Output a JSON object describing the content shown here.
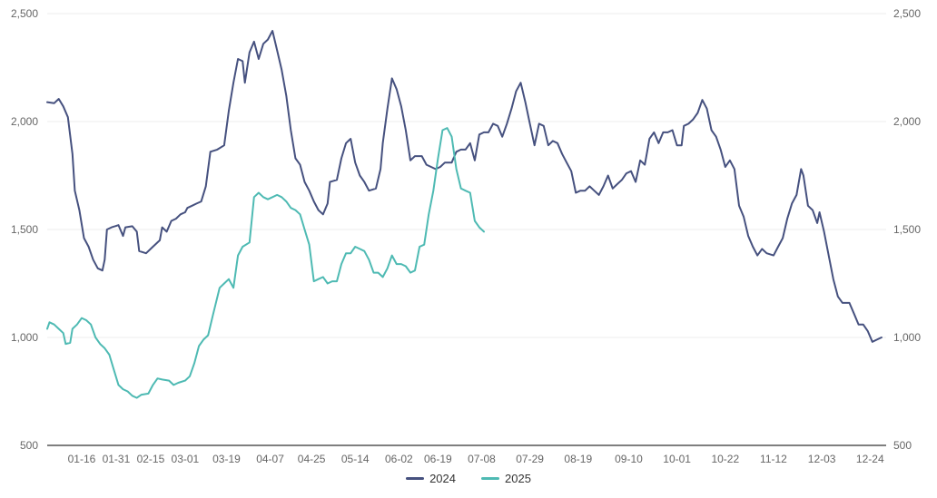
{
  "chart_data": {
    "type": "line",
    "title": "",
    "xlabel": "",
    "ylabel": "",
    "ylim": [
      500,
      2500
    ],
    "y_ticks": [
      "500",
      "1,000",
      "1,500",
      "2,000",
      "2,500"
    ],
    "y_tick_values": [
      500,
      1000,
      1500,
      2000,
      2500
    ],
    "x_range": [
      "01-01",
      "12-31"
    ],
    "x_ticks": [
      "01-16",
      "01-31",
      "02-15",
      "03-01",
      "03-19",
      "04-07",
      "04-25",
      "05-14",
      "06-02",
      "06-19",
      "07-08",
      "07-29",
      "08-19",
      "09-10",
      "10-01",
      "10-22",
      "11-12",
      "12-03",
      "12-24"
    ],
    "grid": true,
    "legend_position": "bottom",
    "series": [
      {
        "name": "2024",
        "color": "#46517f",
        "points": [
          [
            "01-01",
            2090
          ],
          [
            "01-04",
            2085
          ],
          [
            "01-06",
            2105
          ],
          [
            "01-08",
            2070
          ],
          [
            "01-10",
            2020
          ],
          [
            "01-12",
            1850
          ],
          [
            "01-13",
            1680
          ],
          [
            "01-15",
            1590
          ],
          [
            "01-17",
            1460
          ],
          [
            "01-19",
            1420
          ],
          [
            "01-21",
            1360
          ],
          [
            "01-23",
            1320
          ],
          [
            "01-25",
            1310
          ],
          [
            "01-26",
            1360
          ],
          [
            "01-27",
            1500
          ],
          [
            "01-29",
            1510
          ],
          [
            "02-01",
            1520
          ],
          [
            "02-03",
            1470
          ],
          [
            "02-04",
            1510
          ],
          [
            "02-07",
            1515
          ],
          [
            "02-09",
            1490
          ],
          [
            "02-10",
            1400
          ],
          [
            "02-13",
            1390
          ],
          [
            "02-16",
            1420
          ],
          [
            "02-19",
            1450
          ],
          [
            "02-20",
            1510
          ],
          [
            "02-22",
            1490
          ],
          [
            "02-24",
            1540
          ],
          [
            "02-26",
            1550
          ],
          [
            "02-28",
            1570
          ],
          [
            "03-01",
            1580
          ],
          [
            "03-02",
            1600
          ],
          [
            "03-04",
            1610
          ],
          [
            "03-06",
            1620
          ],
          [
            "03-08",
            1630
          ],
          [
            "03-10",
            1700
          ],
          [
            "03-12",
            1860
          ],
          [
            "03-15",
            1870
          ],
          [
            "03-18",
            1890
          ],
          [
            "03-20",
            2050
          ],
          [
            "03-22",
            2180
          ],
          [
            "03-24",
            2290
          ],
          [
            "03-26",
            2280
          ],
          [
            "03-27",
            2180
          ],
          [
            "03-29",
            2320
          ],
          [
            "03-31",
            2370
          ],
          [
            "04-02",
            2290
          ],
          [
            "04-04",
            2360
          ],
          [
            "04-06",
            2380
          ],
          [
            "04-08",
            2420
          ],
          [
            "04-10",
            2330
          ],
          [
            "04-12",
            2240
          ],
          [
            "04-14",
            2120
          ],
          [
            "04-16",
            1960
          ],
          [
            "04-18",
            1830
          ],
          [
            "04-20",
            1800
          ],
          [
            "04-22",
            1720
          ],
          [
            "04-24",
            1680
          ],
          [
            "04-26",
            1630
          ],
          [
            "04-28",
            1590
          ],
          [
            "04-30",
            1570
          ],
          [
            "05-02",
            1620
          ],
          [
            "05-03",
            1720
          ],
          [
            "05-06",
            1730
          ],
          [
            "05-08",
            1830
          ],
          [
            "05-10",
            1900
          ],
          [
            "05-12",
            1920
          ],
          [
            "05-14",
            1810
          ],
          [
            "05-16",
            1750
          ],
          [
            "05-18",
            1720
          ],
          [
            "05-20",
            1680
          ],
          [
            "05-23",
            1690
          ],
          [
            "05-25",
            1780
          ],
          [
            "05-26",
            1900
          ],
          [
            "05-28",
            2060
          ],
          [
            "05-30",
            2200
          ],
          [
            "06-01",
            2150
          ],
          [
            "06-03",
            2070
          ],
          [
            "06-05",
            1960
          ],
          [
            "06-07",
            1820
          ],
          [
            "06-09",
            1840
          ],
          [
            "06-12",
            1840
          ],
          [
            "06-14",
            1800
          ],
          [
            "06-16",
            1790
          ],
          [
            "06-18",
            1780
          ],
          [
            "06-20",
            1790
          ],
          [
            "06-22",
            1810
          ],
          [
            "06-25",
            1810
          ],
          [
            "06-27",
            1860
          ],
          [
            "06-29",
            1870
          ],
          [
            "07-01",
            1870
          ],
          [
            "07-03",
            1900
          ],
          [
            "07-05",
            1820
          ],
          [
            "07-07",
            1940
          ],
          [
            "07-09",
            1950
          ],
          [
            "07-11",
            1950
          ],
          [
            "07-13",
            1990
          ],
          [
            "07-15",
            1980
          ],
          [
            "07-17",
            1930
          ],
          [
            "07-19",
            1990
          ],
          [
            "07-21",
            2060
          ],
          [
            "07-23",
            2140
          ],
          [
            "07-25",
            2180
          ],
          [
            "07-27",
            2090
          ],
          [
            "07-29",
            1990
          ],
          [
            "07-31",
            1890
          ],
          [
            "08-02",
            1990
          ],
          [
            "08-04",
            1980
          ],
          [
            "08-06",
            1890
          ],
          [
            "08-08",
            1910
          ],
          [
            "08-10",
            1900
          ],
          [
            "08-12",
            1850
          ],
          [
            "08-14",
            1810
          ],
          [
            "08-16",
            1770
          ],
          [
            "08-18",
            1670
          ],
          [
            "08-20",
            1680
          ],
          [
            "08-22",
            1680
          ],
          [
            "08-24",
            1700
          ],
          [
            "08-26",
            1680
          ],
          [
            "08-28",
            1660
          ],
          [
            "08-30",
            1700
          ],
          [
            "09-01",
            1750
          ],
          [
            "09-03",
            1690
          ],
          [
            "09-05",
            1710
          ],
          [
            "09-07",
            1730
          ],
          [
            "09-09",
            1760
          ],
          [
            "09-11",
            1770
          ],
          [
            "09-13",
            1720
          ],
          [
            "09-15",
            1820
          ],
          [
            "09-17",
            1800
          ],
          [
            "09-19",
            1920
          ],
          [
            "09-21",
            1950
          ],
          [
            "09-23",
            1900
          ],
          [
            "09-25",
            1950
          ],
          [
            "09-27",
            1950
          ],
          [
            "09-29",
            1960
          ],
          [
            "10-01",
            1890
          ],
          [
            "10-03",
            1890
          ],
          [
            "10-04",
            1980
          ],
          [
            "10-06",
            1990
          ],
          [
            "10-08",
            2010
          ],
          [
            "10-10",
            2040
          ],
          [
            "10-12",
            2100
          ],
          [
            "10-14",
            2060
          ],
          [
            "10-16",
            1960
          ],
          [
            "10-18",
            1930
          ],
          [
            "10-20",
            1870
          ],
          [
            "10-22",
            1790
          ],
          [
            "10-24",
            1820
          ],
          [
            "10-26",
            1780
          ],
          [
            "10-28",
            1610
          ],
          [
            "10-30",
            1560
          ],
          [
            "11-01",
            1470
          ],
          [
            "11-03",
            1420
          ],
          [
            "11-05",
            1380
          ],
          [
            "11-07",
            1410
          ],
          [
            "11-09",
            1390
          ],
          [
            "11-12",
            1380
          ],
          [
            "11-14",
            1420
          ],
          [
            "11-16",
            1460
          ],
          [
            "11-18",
            1550
          ],
          [
            "11-20",
            1620
          ],
          [
            "11-22",
            1660
          ],
          [
            "11-24",
            1780
          ],
          [
            "11-25",
            1750
          ],
          [
            "11-27",
            1610
          ],
          [
            "11-29",
            1590
          ],
          [
            "12-01",
            1530
          ],
          [
            "12-02",
            1580
          ],
          [
            "12-04",
            1490
          ],
          [
            "12-06",
            1380
          ],
          [
            "12-08",
            1270
          ],
          [
            "12-10",
            1190
          ],
          [
            "12-12",
            1160
          ],
          [
            "12-15",
            1160
          ],
          [
            "12-17",
            1110
          ],
          [
            "12-19",
            1060
          ],
          [
            "12-21",
            1060
          ],
          [
            "12-23",
            1030
          ],
          [
            "12-25",
            980
          ],
          [
            "12-27",
            990
          ],
          [
            "12-29",
            1000
          ]
        ]
      },
      {
        "name": "2025",
        "color": "#4ebab3",
        "points": [
          [
            "01-01",
            1040
          ],
          [
            "01-02",
            1070
          ],
          [
            "01-04",
            1060
          ],
          [
            "01-06",
            1040
          ],
          [
            "01-08",
            1020
          ],
          [
            "01-09",
            970
          ],
          [
            "01-11",
            975
          ],
          [
            "01-12",
            1040
          ],
          [
            "01-14",
            1060
          ],
          [
            "01-16",
            1090
          ],
          [
            "01-18",
            1080
          ],
          [
            "01-20",
            1060
          ],
          [
            "01-22",
            1000
          ],
          [
            "01-24",
            970
          ],
          [
            "01-26",
            950
          ],
          [
            "01-28",
            920
          ],
          [
            "01-30",
            850
          ],
          [
            "02-01",
            780
          ],
          [
            "02-03",
            760
          ],
          [
            "02-05",
            750
          ],
          [
            "02-07",
            730
          ],
          [
            "02-09",
            720
          ],
          [
            "02-11",
            735
          ],
          [
            "02-14",
            740
          ],
          [
            "02-16",
            780
          ],
          [
            "02-18",
            810
          ],
          [
            "02-20",
            805
          ],
          [
            "02-23",
            800
          ],
          [
            "02-25",
            780
          ],
          [
            "02-27",
            790
          ],
          [
            "03-01",
            800
          ],
          [
            "03-03",
            820
          ],
          [
            "03-05",
            880
          ],
          [
            "03-07",
            960
          ],
          [
            "03-09",
            990
          ],
          [
            "03-11",
            1010
          ],
          [
            "03-13",
            1100
          ],
          [
            "03-16",
            1230
          ],
          [
            "03-18",
            1250
          ],
          [
            "03-20",
            1270
          ],
          [
            "03-22",
            1230
          ],
          [
            "03-24",
            1380
          ],
          [
            "03-26",
            1420
          ],
          [
            "03-29",
            1440
          ],
          [
            "03-31",
            1650
          ],
          [
            "04-02",
            1670
          ],
          [
            "04-04",
            1650
          ],
          [
            "04-06",
            1640
          ],
          [
            "04-08",
            1650
          ],
          [
            "04-10",
            1660
          ],
          [
            "04-12",
            1650
          ],
          [
            "04-14",
            1630
          ],
          [
            "04-16",
            1600
          ],
          [
            "04-18",
            1590
          ],
          [
            "04-20",
            1570
          ],
          [
            "04-22",
            1500
          ],
          [
            "04-24",
            1430
          ],
          [
            "04-26",
            1260
          ],
          [
            "04-28",
            1270
          ],
          [
            "04-30",
            1280
          ],
          [
            "05-02",
            1250
          ],
          [
            "05-04",
            1260
          ],
          [
            "05-06",
            1260
          ],
          [
            "05-08",
            1340
          ],
          [
            "05-10",
            1390
          ],
          [
            "05-12",
            1390
          ],
          [
            "05-14",
            1420
          ],
          [
            "05-16",
            1410
          ],
          [
            "05-18",
            1400
          ],
          [
            "05-20",
            1360
          ],
          [
            "05-22",
            1300
          ],
          [
            "05-24",
            1300
          ],
          [
            "05-26",
            1280
          ],
          [
            "05-28",
            1320
          ],
          [
            "05-30",
            1380
          ],
          [
            "06-01",
            1340
          ],
          [
            "06-03",
            1340
          ],
          [
            "06-05",
            1330
          ],
          [
            "06-07",
            1300
          ],
          [
            "06-09",
            1310
          ],
          [
            "06-11",
            1420
          ],
          [
            "06-13",
            1430
          ],
          [
            "06-15",
            1570
          ],
          [
            "06-17",
            1680
          ],
          [
            "06-19",
            1830
          ],
          [
            "06-21",
            1960
          ],
          [
            "06-23",
            1970
          ],
          [
            "06-25",
            1930
          ],
          [
            "06-27",
            1780
          ],
          [
            "06-29",
            1690
          ],
          [
            "07-01",
            1680
          ],
          [
            "07-03",
            1670
          ],
          [
            "07-05",
            1540
          ],
          [
            "07-07",
            1510
          ],
          [
            "07-09",
            1490
          ]
        ]
      }
    ]
  }
}
